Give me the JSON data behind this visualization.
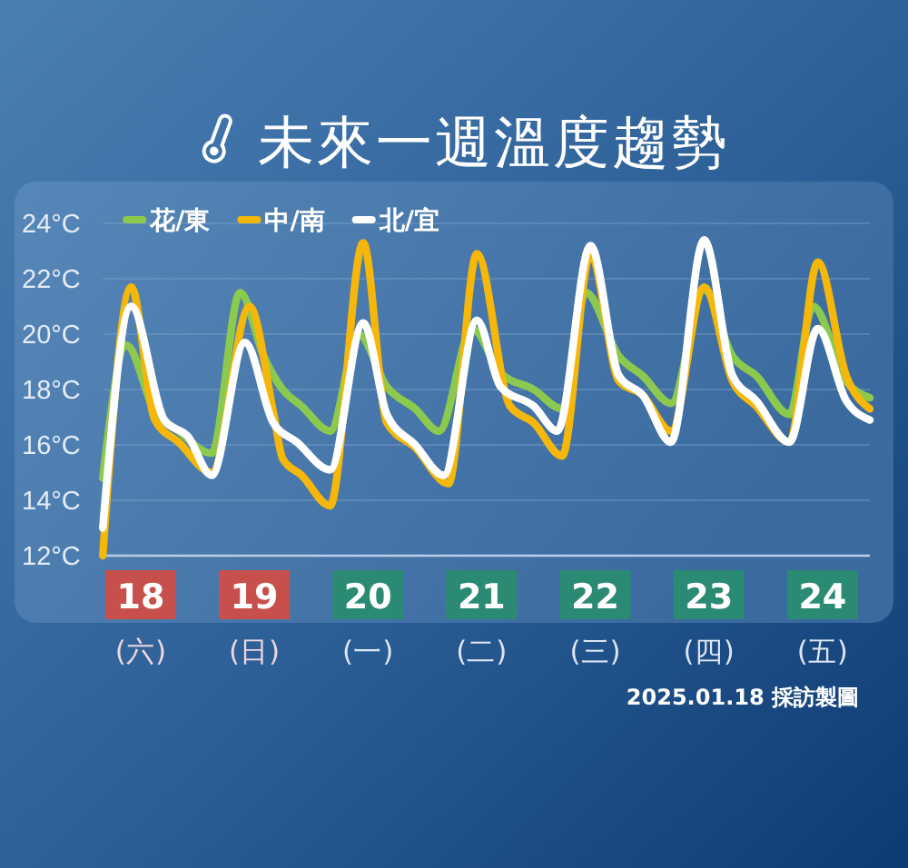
{
  "chart_data": {
    "type": "line",
    "title": "未來一週溫度趨勢",
    "series": [
      {
        "name": "花/東",
        "color": "#8cc94f",
        "x": [
          "2025-01-18T04:00",
          "2025-01-18T09:00",
          "2025-01-18T15:00",
          "2025-01-18T20:00",
          "2025-01-19T03:00",
          "2025-01-19T09:00",
          "2025-01-19T14:00",
          "2025-01-19T18:00",
          "2025-01-19T22:00",
          "2025-01-20T04:00",
          "2025-01-20T10:00",
          "2025-01-20T16:00",
          "2025-01-20T22:00",
          "2025-01-21T03:00",
          "2025-01-21T10:00",
          "2025-01-21T16:00",
          "2025-01-21T23:00",
          "2025-01-22T05:00",
          "2025-01-22T10:00",
          "2025-01-22T17:00",
          "2025-01-22T22:00",
          "2025-01-23T04:00",
          "2025-01-23T11:00",
          "2025-01-23T17:00",
          "2025-01-23T22:00",
          "2025-01-24T05:00",
          "2025-01-24T10:00",
          "2025-01-24T17:00",
          "2025-01-24T22:00"
        ],
        "values": [
          14.8,
          19.6,
          17.2,
          16.5,
          15.7,
          21.5,
          19.2,
          18.0,
          17.4,
          16.5,
          20.0,
          18.1,
          17.3,
          16.5,
          20.2,
          18.6,
          18.0,
          17.3,
          21.5,
          19.2,
          18.5,
          17.5,
          21.6,
          19.2,
          18.5,
          17.1,
          21.0,
          18.3,
          17.7
        ]
      },
      {
        "name": "中/南",
        "color": "#f5b70a",
        "x": [
          "2025-01-18T04:00",
          "2025-01-18T10:00",
          "2025-01-18T15:00",
          "2025-01-18T20:00",
          "2025-01-19T03:00",
          "2025-01-19T11:00",
          "2025-01-19T16:00",
          "2025-01-19T18:00",
          "2025-01-19T22:00",
          "2025-01-20T04:00",
          "2025-01-20T11:00",
          "2025-01-20T16:00",
          "2025-01-20T22:00",
          "2025-01-21T05:00",
          "2025-01-21T11:00",
          "2025-01-21T18:00",
          "2025-01-21T23:00",
          "2025-01-22T05:00",
          "2025-01-22T11:00",
          "2025-01-22T17:00",
          "2025-01-22T22:00",
          "2025-01-23T04:00",
          "2025-01-23T11:00",
          "2025-01-23T17:00",
          "2025-01-23T22:00",
          "2025-01-24T05:00",
          "2025-01-24T11:00",
          "2025-01-24T17:00",
          "2025-01-24T22:00"
        ],
        "values": [
          12.0,
          21.7,
          16.9,
          16.1,
          15.0,
          21.0,
          17.2,
          15.5,
          14.9,
          13.8,
          23.3,
          16.8,
          15.9,
          14.6,
          22.9,
          17.4,
          16.8,
          15.6,
          22.9,
          18.3,
          17.8,
          16.5,
          21.7,
          18.3,
          17.4,
          16.1,
          22.6,
          18.5,
          17.3
        ]
      },
      {
        "name": "北/宜",
        "color": "#ffffff",
        "x": [
          "2025-01-18T04:00",
          "2025-01-18T10:00",
          "2025-01-18T17:00",
          "2025-01-18T22:00",
          "2025-01-19T03:00",
          "2025-01-19T10:00",
          "2025-01-19T16:00",
          "2025-01-19T21:00",
          "2025-01-20T04:00",
          "2025-01-20T11:00",
          "2025-01-20T16:00",
          "2025-01-20T22:00",
          "2025-01-21T04:00",
          "2025-01-21T11:00",
          "2025-01-21T16:00",
          "2025-01-21T23:00",
          "2025-01-22T04:00",
          "2025-01-22T11:00",
          "2025-01-22T17:00",
          "2025-01-22T22:00",
          "2025-01-23T04:00",
          "2025-01-23T11:00",
          "2025-01-23T17:00",
          "2025-01-23T22:00",
          "2025-01-24T05:00",
          "2025-01-24T11:00",
          "2025-01-24T17:00",
          "2025-01-24T22:00"
        ],
        "values": [
          13.0,
          21.0,
          16.9,
          16.3,
          14.9,
          19.7,
          16.8,
          16.1,
          15.1,
          20.4,
          17.1,
          16.0,
          14.9,
          20.5,
          18.1,
          17.4,
          16.5,
          23.2,
          18.5,
          17.8,
          16.1,
          23.4,
          18.5,
          17.6,
          16.1,
          20.2,
          17.6,
          16.9
        ]
      }
    ],
    "xlim": [
      "2025-01-18T04:00",
      "2025-01-24T22:00"
    ],
    "xticks": [
      {
        "value": "2025-01-18T12:00",
        "label": "18\n(六)"
      },
      {
        "value": "2025-01-19T12:00",
        "label": "19\n(日)"
      },
      {
        "value": "2025-01-20T12:00",
        "label": "20\n(一)"
      },
      {
        "value": "2025-01-21T12:00",
        "label": "21\n(二)"
      },
      {
        "value": "2025-01-22T12:00",
        "label": "22\n(三)"
      },
      {
        "value": "2025-01-23T12:00",
        "label": "23\n(四)"
      },
      {
        "value": "2025-01-24T12:00",
        "label": "24\n(五)"
      }
    ],
    "ylim": [
      12,
      24
    ],
    "yticks": [
      {
        "value": 12,
        "label": "12°C"
      },
      {
        "value": 14,
        "label": "14°C"
      },
      {
        "value": 16,
        "label": "16°C"
      },
      {
        "value": 18,
        "label": "18°C"
      },
      {
        "value": 20,
        "label": "20°C"
      },
      {
        "value": 22,
        "label": "22°C"
      },
      {
        "value": 24,
        "label": "24°C"
      }
    ],
    "grid": "y",
    "legend": "top left",
    "annotations": [
      "2025.01.18 採訪製圖"
    ]
  }
}
